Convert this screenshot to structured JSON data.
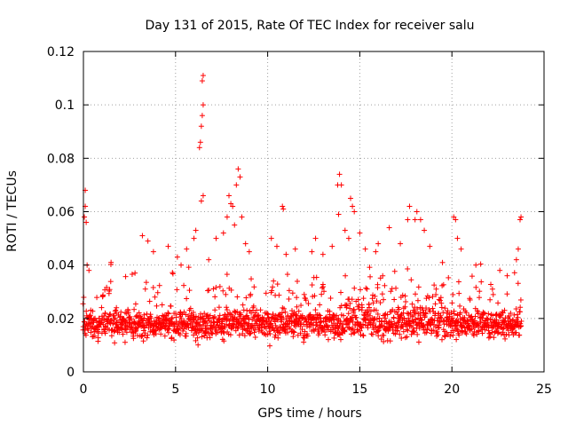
{
  "chart_data": {
    "type": "scatter",
    "title": "Day 131 of 2015, Rate Of TEC Index for receiver salu",
    "xlabel": "GPS time / hours",
    "ylabel": "ROTI / TECUs",
    "xlim": [
      0,
      25
    ],
    "ylim": [
      0,
      0.12
    ],
    "xticks": [
      0,
      5,
      10,
      15,
      20,
      25
    ],
    "xtick_labels": [
      "0",
      "5",
      "10",
      "15",
      "20",
      "25"
    ],
    "yticks": [
      0,
      0.02,
      0.04,
      0.06,
      0.08,
      0.1,
      0.12
    ],
    "ytick_labels": [
      "0",
      "0.02",
      "0.04",
      "0.06",
      "0.08",
      "0.1",
      "0.12"
    ],
    "grid": true,
    "marker": "+",
    "color": "#ff0000",
    "series": [
      {
        "name": "ROTI",
        "points": [
          [
            0.05,
            0.058
          ],
          [
            0.1,
            0.062
          ],
          [
            0.1,
            0.068
          ],
          [
            0.15,
            0.056
          ],
          [
            0.2,
            0.04
          ],
          [
            0.3,
            0.038
          ],
          [
            1.5,
            0.041
          ],
          [
            2.8,
            0.037
          ],
          [
            3.2,
            0.051
          ],
          [
            3.5,
            0.049
          ],
          [
            3.8,
            0.045
          ],
          [
            4.6,
            0.047
          ],
          [
            5.1,
            0.043
          ],
          [
            5.3,
            0.04
          ],
          [
            5.6,
            0.046
          ],
          [
            6.0,
            0.05
          ],
          [
            6.1,
            0.053
          ],
          [
            6.3,
            0.084
          ],
          [
            6.35,
            0.086
          ],
          [
            6.4,
            0.092
          ],
          [
            6.45,
            0.096
          ],
          [
            6.5,
            0.1
          ],
          [
            6.45,
            0.109
          ],
          [
            6.5,
            0.111
          ],
          [
            6.4,
            0.064
          ],
          [
            6.5,
            0.066
          ],
          [
            6.8,
            0.042
          ],
          [
            7.2,
            0.05
          ],
          [
            7.6,
            0.052
          ],
          [
            7.8,
            0.058
          ],
          [
            7.9,
            0.066
          ],
          [
            8.0,
            0.063
          ],
          [
            8.1,
            0.062
          ],
          [
            8.2,
            0.055
          ],
          [
            8.3,
            0.07
          ],
          [
            8.4,
            0.076
          ],
          [
            8.5,
            0.073
          ],
          [
            8.6,
            0.058
          ],
          [
            8.8,
            0.048
          ],
          [
            9.0,
            0.045
          ],
          [
            10.2,
            0.05
          ],
          [
            10.5,
            0.047
          ],
          [
            10.8,
            0.062
          ],
          [
            10.85,
            0.061
          ],
          [
            11.0,
            0.044
          ],
          [
            11.5,
            0.046
          ],
          [
            12.4,
            0.045
          ],
          [
            12.6,
            0.05
          ],
          [
            13.0,
            0.044
          ],
          [
            13.5,
            0.047
          ],
          [
            13.8,
            0.07
          ],
          [
            13.9,
            0.074
          ],
          [
            14.0,
            0.07
          ],
          [
            13.85,
            0.059
          ],
          [
            14.2,
            0.053
          ],
          [
            14.4,
            0.05
          ],
          [
            14.5,
            0.065
          ],
          [
            14.6,
            0.062
          ],
          [
            14.7,
            0.06
          ],
          [
            15.0,
            0.052
          ],
          [
            15.3,
            0.046
          ],
          [
            16.0,
            0.048
          ],
          [
            16.6,
            0.054
          ],
          [
            17.2,
            0.048
          ],
          [
            17.6,
            0.057
          ],
          [
            17.7,
            0.062
          ],
          [
            18.0,
            0.057
          ],
          [
            18.1,
            0.06
          ],
          [
            18.3,
            0.057
          ],
          [
            18.5,
            0.053
          ],
          [
            18.8,
            0.047
          ],
          [
            20.1,
            0.058
          ],
          [
            20.2,
            0.057
          ],
          [
            20.3,
            0.05
          ],
          [
            20.5,
            0.046
          ],
          [
            21.3,
            0.04
          ],
          [
            22.6,
            0.038
          ],
          [
            23.0,
            0.036
          ],
          [
            23.5,
            0.042
          ],
          [
            23.6,
            0.046
          ],
          [
            23.7,
            0.057
          ],
          [
            23.75,
            0.058
          ]
        ]
      }
    ]
  }
}
